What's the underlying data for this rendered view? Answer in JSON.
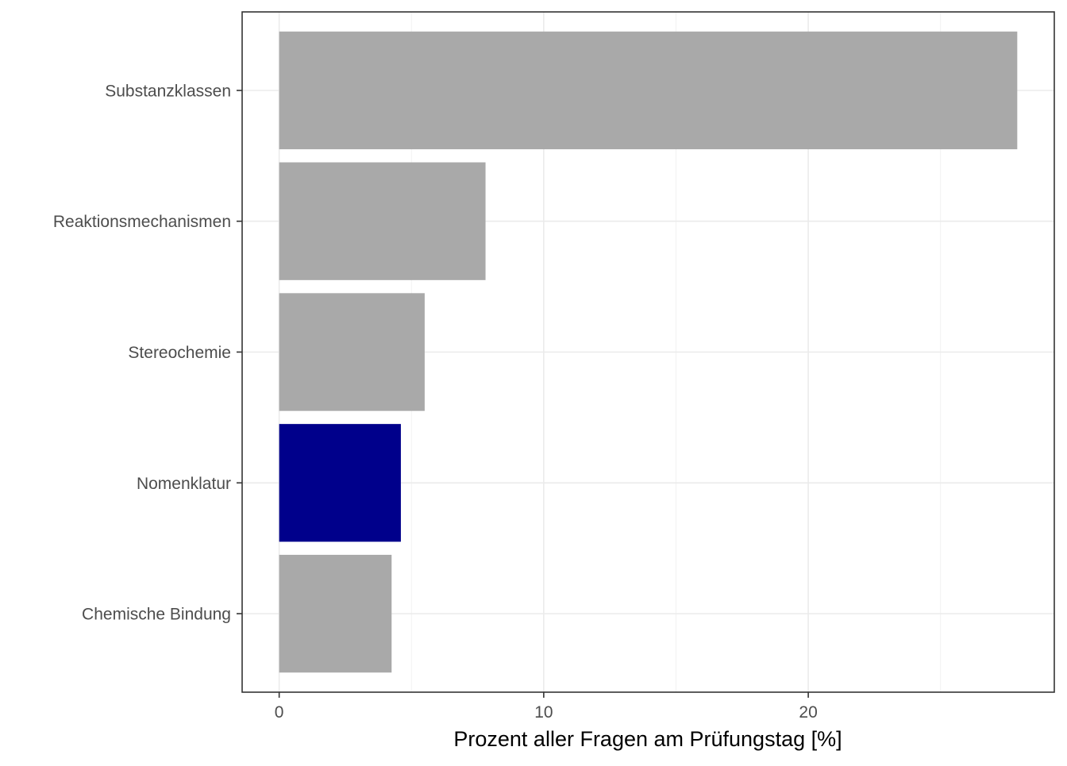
{
  "chart_data": {
    "type": "bar",
    "orientation": "horizontal",
    "categories": [
      "Substanzklassen",
      "Reaktionsmechanismen",
      "Stereochemie",
      "Nomenklatur",
      "Chemische Bindung"
    ],
    "values": [
      27.9,
      7.8,
      5.5,
      4.6,
      4.25
    ],
    "highlight_category": "Nomenklatur",
    "colors": {
      "default_bar": "#a9a9a9",
      "highlight_bar": "#00008b"
    },
    "xlabel": "Prozent aller Fragen am Prüfungstag [%]",
    "ylabel": "",
    "xlim": [
      -1.4,
      29.3
    ],
    "xticks": [
      0,
      10,
      20
    ],
    "xtick_labels": [
      "0",
      "10",
      "20"
    ],
    "grid": true,
    "legend": "none"
  }
}
